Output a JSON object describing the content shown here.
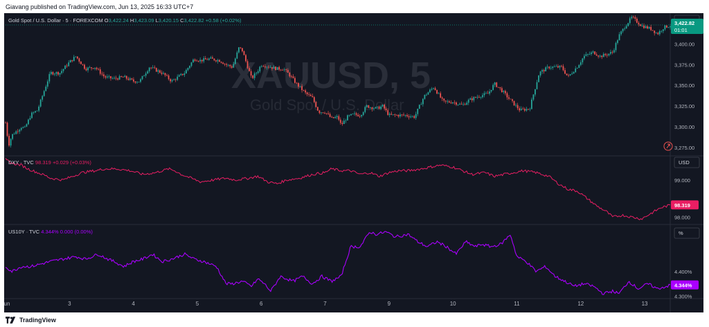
{
  "header": {
    "published": "Giavang published on TradingView.com, Jun 13, 2025 16:33 UTC+7"
  },
  "footer": {
    "brand": "TradingView"
  },
  "watermark": {
    "symbol": "XAUUSD, 5",
    "description": "Gold Spot / U.S. Dollar"
  },
  "colors": {
    "background": "#131722",
    "up": "#26a69a",
    "down": "#ef5350",
    "dxy": "#e91e63",
    "us10y": "#aa00ff",
    "gold_label": "#089981"
  },
  "chart_data": [
    {
      "type": "candlestick",
      "title": "Gold Spot / U.S. Dollar · 5 · FOREXCOM",
      "ohlc": {
        "O": "3,422.24",
        "H": "3,423.09",
        "L": "3,420.15",
        "C": "3,422.82",
        "change": "+0.58 (+0.02%)"
      },
      "currency": "USD",
      "last_price": "3,422.82",
      "countdown": "01:01",
      "y_ticks": [
        3275,
        3300,
        3325,
        3350,
        3375,
        3400
      ],
      "y_tick_labels": [
        "3,275.00",
        "3,300.00",
        "3,325.00",
        "3,350.00",
        "3,375.00",
        "3,400.00"
      ],
      "ylim": [
        3265,
        3437
      ],
      "x_ticks": [
        "Jun",
        "3",
        "4",
        "5",
        "6",
        "7",
        "9",
        "10",
        "11",
        "12",
        "13"
      ],
      "x_tick_pos": [
        0.5,
        1.5,
        2.5,
        3.5,
        4.5,
        5.5,
        6.5,
        7.5,
        8.5,
        9.5,
        10.5
      ],
      "x_range": [
        0.5,
        10.9
      ],
      "approx_series": {
        "x": [
          0.5,
          0.55,
          0.6,
          0.75,
          0.8,
          0.9,
          1.0,
          1.2,
          1.35,
          1.5,
          1.6,
          1.75,
          1.9,
          2.05,
          2.2,
          2.35,
          2.5,
          2.6,
          2.75,
          2.95,
          3.1,
          3.3,
          3.45,
          3.55,
          3.7,
          3.85,
          3.95,
          4.05,
          4.15,
          4.2,
          4.35,
          4.45,
          4.5,
          4.6,
          4.75,
          4.85,
          4.95,
          5.05,
          5.2,
          5.3,
          5.4,
          5.5,
          5.6,
          5.7,
          5.75,
          5.85,
          5.95,
          6.05,
          6.15,
          6.3,
          6.4,
          6.5,
          6.6,
          6.75,
          6.9,
          7.05,
          7.2,
          7.35,
          7.5,
          7.65,
          7.75,
          7.9,
          8.05,
          8.15,
          8.25,
          8.4,
          8.55,
          8.7,
          8.85,
          9.0,
          9.2,
          9.3,
          9.45,
          9.55,
          9.7,
          9.8,
          9.9,
          10.0,
          10.1,
          10.2,
          10.3,
          10.45,
          10.6,
          10.7,
          10.8,
          10.9
        ],
        "y": [
          3305,
          3278,
          3290,
          3300,
          3298,
          3315,
          3320,
          3365,
          3365,
          3378,
          3385,
          3370,
          3372,
          3360,
          3358,
          3360,
          3355,
          3355,
          3372,
          3365,
          3355,
          3365,
          3382,
          3380,
          3382,
          3380,
          3375,
          3372,
          3395,
          3393,
          3358,
          3368,
          3375,
          3373,
          3370,
          3370,
          3362,
          3352,
          3340,
          3335,
          3318,
          3318,
          3310,
          3312,
          3302,
          3312,
          3315,
          3314,
          3325,
          3322,
          3325,
          3314,
          3314,
          3314,
          3312,
          3337,
          3348,
          3330,
          3330,
          3326,
          3332,
          3337,
          3340,
          3352,
          3345,
          3332,
          3320,
          3322,
          3365,
          3372,
          3372,
          3360,
          3373,
          3385,
          3390,
          3385,
          3387,
          3390,
          3410,
          3422,
          3432,
          3422,
          3418,
          3412,
          3420,
          3422
        ]
      }
    },
    {
      "type": "line",
      "title": "DXY · TVC",
      "value": "98.319",
      "change": "+0.029 (+0.03%)",
      "currency": "USD",
      "last_value": "98.319",
      "y_ticks": [
        98.0,
        99.0
      ],
      "y_tick_labels": [
        "98.000",
        "99.000"
      ],
      "ylim": [
        97.8,
        99.65
      ],
      "approx_series": {
        "x": [
          0.5,
          0.6,
          0.75,
          0.85,
          1.0,
          1.15,
          1.2,
          1.4,
          1.55,
          1.7,
          1.9,
          2.05,
          2.25,
          2.45,
          2.65,
          2.85,
          3.05,
          3.15,
          3.25,
          3.4,
          3.55,
          3.75,
          3.95,
          4.1,
          4.3,
          4.45,
          4.6,
          4.75,
          4.9,
          5.1,
          5.3,
          5.5,
          5.6,
          5.75,
          5.9,
          6.05,
          6.2,
          6.35,
          6.5,
          6.65,
          6.8,
          7.0,
          7.15,
          7.3,
          7.5,
          7.65,
          7.8,
          8.0,
          8.15,
          8.3,
          8.45,
          8.6,
          8.8,
          9.0,
          9.15,
          9.3,
          9.45,
          9.6,
          9.75,
          9.9,
          10.0,
          10.15,
          10.3,
          10.45,
          10.6,
          10.75,
          10.9
        ],
        "y": [
          99.55,
          99.45,
          99.4,
          99.3,
          99.2,
          99.1,
          99.05,
          99.0,
          99.1,
          99.2,
          99.25,
          99.3,
          99.3,
          99.25,
          99.15,
          99.2,
          99.3,
          99.25,
          99.15,
          99.05,
          98.95,
          99.0,
          99.05,
          99.0,
          99.05,
          99.1,
          98.95,
          98.9,
          99.0,
          99.05,
          99.15,
          99.2,
          99.3,
          99.25,
          99.25,
          99.15,
          99.2,
          99.1,
          99.2,
          99.25,
          99.25,
          99.3,
          99.35,
          99.4,
          99.35,
          99.25,
          99.15,
          99.2,
          99.1,
          99.15,
          99.2,
          99.25,
          99.2,
          99.1,
          98.9,
          98.75,
          98.7,
          98.5,
          98.3,
          98.15,
          98.0,
          98.05,
          98.0,
          97.95,
          98.1,
          98.25,
          98.32
        ]
      }
    },
    {
      "type": "line",
      "title": "US10Y · TVC",
      "value": "4.344%",
      "change": "0.000 (0.00%)",
      "unit": "%",
      "last_value": "4.344%",
      "y_ticks": [
        4.3,
        4.4
      ],
      "y_tick_labels": [
        "4.300%",
        "4.400%"
      ],
      "ylim": [
        4.29,
        4.59
      ],
      "approx_series": {
        "x": [
          0.5,
          0.6,
          0.75,
          0.9,
          1.05,
          1.2,
          1.4,
          1.6,
          1.75,
          1.95,
          2.1,
          2.2,
          2.35,
          2.5,
          2.65,
          2.8,
          2.95,
          3.1,
          3.2,
          3.3,
          3.45,
          3.6,
          3.8,
          3.95,
          4.05,
          4.2,
          4.35,
          4.45,
          4.55,
          4.65,
          4.8,
          5.0,
          5.15,
          5.3,
          5.45,
          5.6,
          5.75,
          5.9,
          6.05,
          6.2,
          6.3,
          6.45,
          6.6,
          6.8,
          6.95,
          7.1,
          7.25,
          7.4,
          7.55,
          7.7,
          7.85,
          7.95,
          8.1,
          8.25,
          8.4,
          8.5,
          8.65,
          8.8,
          8.95,
          9.1,
          9.25,
          9.4,
          9.55,
          9.7,
          9.85,
          10.0,
          10.1,
          10.25,
          10.4,
          10.55,
          10.7,
          10.85,
          10.9
        ],
        "y": [
          4.42,
          4.4,
          4.42,
          4.42,
          4.43,
          4.44,
          4.45,
          4.46,
          4.45,
          4.47,
          4.45,
          4.44,
          4.42,
          4.44,
          4.45,
          4.47,
          4.44,
          4.45,
          4.46,
          4.47,
          4.45,
          4.44,
          4.42,
          4.35,
          4.35,
          4.36,
          4.34,
          4.37,
          4.35,
          4.32,
          4.38,
          4.36,
          4.38,
          4.35,
          4.38,
          4.36,
          4.38,
          4.5,
          4.5,
          4.56,
          4.55,
          4.56,
          4.54,
          4.55,
          4.52,
          4.5,
          4.52,
          4.5,
          4.47,
          4.52,
          4.5,
          4.51,
          4.5,
          4.51,
          4.55,
          4.46,
          4.44,
          4.4,
          4.42,
          4.38,
          4.36,
          4.34,
          4.35,
          4.34,
          4.31,
          4.32,
          4.31,
          4.36,
          4.33,
          4.35,
          4.33,
          4.34,
          4.344
        ]
      }
    }
  ]
}
